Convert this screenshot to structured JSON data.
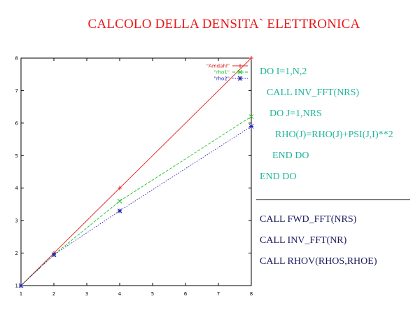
{
  "slide": {
    "title": "CALCOLO DELLA DENSITA` ELETTRONICA",
    "colors": {
      "title": "#e81818",
      "code_top": "#1fb59a",
      "code_bottom": "#1a1a5e"
    }
  },
  "code": {
    "top": [
      "DO I=1,N,2",
      "CALL INV_FFT(NRS)",
      "DO J=1,NRS",
      "RHO(J)=RHO(J)+PSI(J,I)**2",
      "END DO",
      "END DO"
    ],
    "bottom": [
      "CALL FWD_FFT(NRS)",
      "CALL INV_FFT(NR)",
      "CALL RHOV(RHOS,RHOE)"
    ]
  },
  "chart_data": {
    "type": "line",
    "title": "",
    "xlabel": "",
    "ylabel": "",
    "xlim": [
      1,
      8
    ],
    "ylim": [
      1,
      8
    ],
    "xticks": [
      "1",
      "2",
      "3",
      "4",
      "5",
      "6",
      "7",
      "8"
    ],
    "yticks": [
      "1",
      "2",
      "3",
      "4",
      "5",
      "6",
      "7",
      "8"
    ],
    "grid": false,
    "legend_position": "top-right",
    "series": [
      {
        "name": "\"Amdahl\"",
        "color": "#e02020",
        "style": "solid",
        "marker": "plus",
        "x": [
          1,
          2,
          4,
          8
        ],
        "y": [
          1,
          2,
          4,
          8
        ]
      },
      {
        "name": "\"rho1\"",
        "color": "#20c020",
        "style": "dashed",
        "marker": "cross",
        "x": [
          1,
          2,
          4,
          8
        ],
        "y": [
          1,
          1.95,
          3.6,
          6.2
        ]
      },
      {
        "name": "\"rho2\"",
        "color": "#2020b0",
        "style": "dotted",
        "marker": "star",
        "x": [
          1,
          2,
          4,
          8
        ],
        "y": [
          1,
          1.95,
          3.3,
          5.9
        ]
      }
    ]
  }
}
